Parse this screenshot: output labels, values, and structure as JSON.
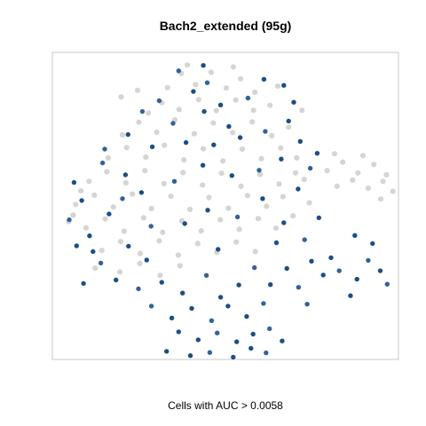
{
  "chart_data": {
    "type": "scatter",
    "title": "Bach2_extended (95g)",
    "xlabel": "Cells with AUC > 0.0058",
    "ylabel": "",
    "grid": false,
    "legend": "none",
    "colors": {
      "background_cells": "#d3d3d3",
      "positive_cells": "#174a85",
      "positive_cells_alt": "#2f5f98",
      "frame": "#c8c8c8"
    },
    "xlim": [
      -40,
      40
    ],
    "ylim": [
      -40,
      40
    ],
    "series": [
      {
        "name": "",
        "role": "background",
        "points": [
          [
            -13.4,
            30.8
          ],
          [
            -10.2,
            34.5
          ],
          [
            -6.9,
            31.6
          ],
          [
            -3.3,
            34.8
          ],
          [
            0.2,
            30.7
          ],
          [
            3.5,
            33.1
          ],
          [
            6.8,
            29.6
          ],
          [
            -17.8,
            24.2
          ],
          [
            -14.7,
            26.9
          ],
          [
            -10.7,
            25.1
          ],
          [
            -6.2,
            27.7
          ],
          [
            -2.1,
            24.8
          ],
          [
            2.4,
            27.6
          ],
          [
            6.5,
            24.9
          ],
          [
            10.3,
            26.2
          ],
          [
            -23.8,
            18.5
          ],
          [
            -20.0,
            21.8
          ],
          [
            -15.9,
            19.2
          ],
          [
            -11.7,
            22.4
          ],
          [
            -7.2,
            18.8
          ],
          [
            -2.8,
            21.6
          ],
          [
            1.7,
            19.1
          ],
          [
            6.2,
            21.9
          ],
          [
            10.7,
            18.3
          ],
          [
            14.6,
            20.5
          ],
          [
            -27.1,
            12.5
          ],
          [
            -22.8,
            15.2
          ],
          [
            -18.4,
            12.7
          ],
          [
            -14.1,
            15.8
          ],
          [
            -9.6,
            12.0
          ],
          [
            -5.1,
            14.9
          ],
          [
            -0.6,
            11.7
          ],
          [
            3.9,
            14.8
          ],
          [
            8.3,
            12.3
          ],
          [
            12.8,
            15.1
          ],
          [
            16.5,
            12.5
          ],
          [
            -31.5,
            6.4
          ],
          [
            -27.4,
            8.9
          ],
          [
            -23.0,
            6.0
          ],
          [
            -18.6,
            9.2
          ],
          [
            -14.2,
            5.8
          ],
          [
            -9.8,
            8.7
          ],
          [
            -5.3,
            5.4
          ],
          [
            -0.9,
            8.5
          ],
          [
            3.6,
            5.1
          ],
          [
            8.0,
            8.2
          ],
          [
            12.4,
            5.7
          ],
          [
            16.2,
            8.6
          ],
          [
            -34.6,
            0.4
          ],
          [
            -30.3,
            2.8
          ],
          [
            -25.9,
            -0.3
          ],
          [
            -21.5,
            3.1
          ],
          [
            -17.1,
            -0.7
          ],
          [
            -12.6,
            2.5
          ],
          [
            -8.2,
            -0.9
          ],
          [
            -3.8,
            2.2
          ],
          [
            0.7,
            -0.6
          ],
          [
            5.1,
            2.7
          ],
          [
            9.5,
            -0.1
          ],
          [
            13.3,
            2.4
          ],
          [
            -32.2,
            -5.7
          ],
          [
            -27.8,
            -3.4
          ],
          [
            -23.4,
            -6.6
          ],
          [
            -18.9,
            -3.1
          ],
          [
            -14.5,
            -6.9
          ],
          [
            -10.1,
            -3.9
          ],
          [
            -5.6,
            -6.5
          ],
          [
            -1.2,
            -3.6
          ],
          [
            3.2,
            -6.1
          ],
          [
            7.6,
            -3.3
          ],
          [
            11.7,
            -5.8
          ],
          [
            -28.6,
            -11.6
          ],
          [
            -24.2,
            -9.3
          ],
          [
            -19.7,
            -12.4
          ],
          [
            -15.3,
            -9.1
          ],
          [
            -10.9,
            -12.8
          ],
          [
            -6.4,
            -9.8
          ],
          [
            -2.0,
            -12.1
          ],
          [
            2.5,
            -9.4
          ],
          [
            6.9,
            -11.9
          ],
          [
            -24.4,
            -17.2
          ],
          [
            -19.8,
            -15.0
          ],
          [
            -15.1,
            -18.1
          ],
          [
            -10.5,
            -15.6
          ],
          [
            23.5,
            9.2
          ],
          [
            27.1,
            11.4
          ],
          [
            30.6,
            8.6
          ],
          [
            34.3,
            10.8
          ],
          [
            37.2,
            8.1
          ],
          [
            25.8,
            5.1
          ],
          [
            29.4,
            6.7
          ],
          [
            33.0,
            4.6
          ],
          [
            36.4,
            6.4
          ],
          [
            38.7,
            3.8
          ],
          [
            25.2,
            13.6
          ],
          [
            31.8,
            13.1
          ],
          [
            35.9,
            1.8
          ],
          [
            -30.1,
            -16.2
          ],
          [
            -35.2,
            -2.4
          ],
          [
            18.2,
            6.9
          ],
          [
            19.4,
            0.8
          ],
          [
            15.6,
            -2.6
          ],
          [
            -24.1,
            28.4
          ],
          [
            -20.3,
            30.1
          ],
          [
            -8.8,
            36.7
          ],
          [
            1.8,
            36.2
          ],
          [
            12.1,
            31.2
          ],
          [
            17.7,
            24.9
          ],
          [
            -33.4,
            3.9
          ],
          [
            -36.2,
            -4.1
          ]
        ]
      },
      {
        "name": "",
        "role": "AUC > 0.0058",
        "points": [
          [
            -10.8,
            35.2
          ],
          [
            -5.1,
            36.6
          ],
          [
            -7.4,
            29.8
          ],
          [
            -15.3,
            27.4
          ],
          [
            -4.9,
            24.6
          ],
          [
            -1.1,
            26.3
          ],
          [
            5.2,
            28.1
          ],
          [
            8.9,
            33.0
          ],
          [
            13.5,
            31.4
          ],
          [
            -19.2,
            24.6
          ],
          [
            -22.5,
            18.6
          ],
          [
            -16.9,
            15.4
          ],
          [
            -12.1,
            21.5
          ],
          [
            -2.7,
            15.9
          ],
          [
            3.4,
            17.8
          ],
          [
            9.2,
            19.4
          ],
          [
            14.6,
            22.1
          ],
          [
            17.3,
            16.8
          ],
          [
            -28.4,
            11.2
          ],
          [
            -23.1,
            8.1
          ],
          [
            -19.4,
            3.5
          ],
          [
            -11.8,
            6.4
          ],
          [
            -5.2,
            10.6
          ],
          [
            1.5,
            7.9
          ],
          [
            7.8,
            9.3
          ],
          [
            12.9,
            12.2
          ],
          [
            16.8,
            4.4
          ],
          [
            19.6,
            9.8
          ],
          [
            -35.0,
            6.1
          ],
          [
            -33.2,
            1.4
          ],
          [
            -36.1,
            -3.6
          ],
          [
            -31.4,
            -7.8
          ],
          [
            -34.4,
            -10.4
          ],
          [
            -28.8,
            -14.9
          ],
          [
            -26.9,
            -2.1
          ],
          [
            -22.4,
            -10.5
          ],
          [
            -17.2,
            -5.3
          ],
          [
            -9.4,
            -4.6
          ],
          [
            -4.1,
            -1.1
          ],
          [
            2.8,
            -2.9
          ],
          [
            8.6,
            1.9
          ],
          [
            13.5,
            -4.4
          ],
          [
            18.3,
            -8.8
          ],
          [
            21.6,
            -3.1
          ],
          [
            24.4,
            -13.5
          ],
          [
            33.0,
            -14.2
          ],
          [
            35.8,
            -16.9
          ],
          [
            30.4,
            -19.1
          ],
          [
            37.4,
            -20.4
          ],
          [
            28.9,
            -23.4
          ],
          [
            -25.3,
            -19.3
          ],
          [
            -20.1,
            -21.6
          ],
          [
            -14.7,
            -19.9
          ],
          [
            -9.9,
            -22.7
          ],
          [
            -4.4,
            -18.1
          ],
          [
            -1.1,
            -23.8
          ],
          [
            3.1,
            -20.6
          ],
          [
            6.7,
            -16.1
          ],
          [
            10.4,
            -20.5
          ],
          [
            14.2,
            -16.3
          ],
          [
            16.9,
            -21.2
          ],
          [
            19.9,
            -14.4
          ],
          [
            22.6,
            -18.0
          ],
          [
            -17.1,
            -26.1
          ],
          [
            -12.4,
            -29.2
          ],
          [
            -7.8,
            -26.7
          ],
          [
            -3.2,
            -29.9
          ],
          [
            0.6,
            -26.1
          ],
          [
            4.9,
            -28.8
          ],
          [
            8.8,
            -25.4
          ],
          [
            -10.8,
            -32.8
          ],
          [
            -6.3,
            -34.9
          ],
          [
            -1.9,
            -33.1
          ],
          [
            2.6,
            -35.4
          ],
          [
            6.4,
            -33.4
          ],
          [
            10.2,
            -32.0
          ],
          [
            -13.6,
            -37.9
          ],
          [
            -8.1,
            -39.0
          ],
          [
            -3.6,
            -38.2
          ],
          [
            1.8,
            -39.4
          ],
          [
            5.9,
            -37.1
          ],
          [
            9.4,
            -38.3
          ],
          [
            13.1,
            -35.2
          ],
          [
            -30.6,
            -11.9
          ],
          [
            -27.9,
            14.8
          ],
          [
            -32.8,
            -20.2
          ],
          [
            -18.2,
            -14.1
          ],
          [
            -23.8,
            1.9
          ],
          [
            -1.7,
            -11.3
          ],
          [
            11.8,
            -9.6
          ],
          [
            18.9,
            -25.6
          ],
          [
            29.9,
            -7.7
          ],
          [
            34.0,
            -9.8
          ],
          [
            26.3,
            -16.9
          ],
          [
            21.2,
            13.7
          ],
          [
            15.8,
            27.0
          ],
          [
            -4.2,
            32.1
          ],
          [
            0.8,
            20.7
          ],
          [
            -9.1,
            16.5
          ]
        ]
      }
    ]
  }
}
